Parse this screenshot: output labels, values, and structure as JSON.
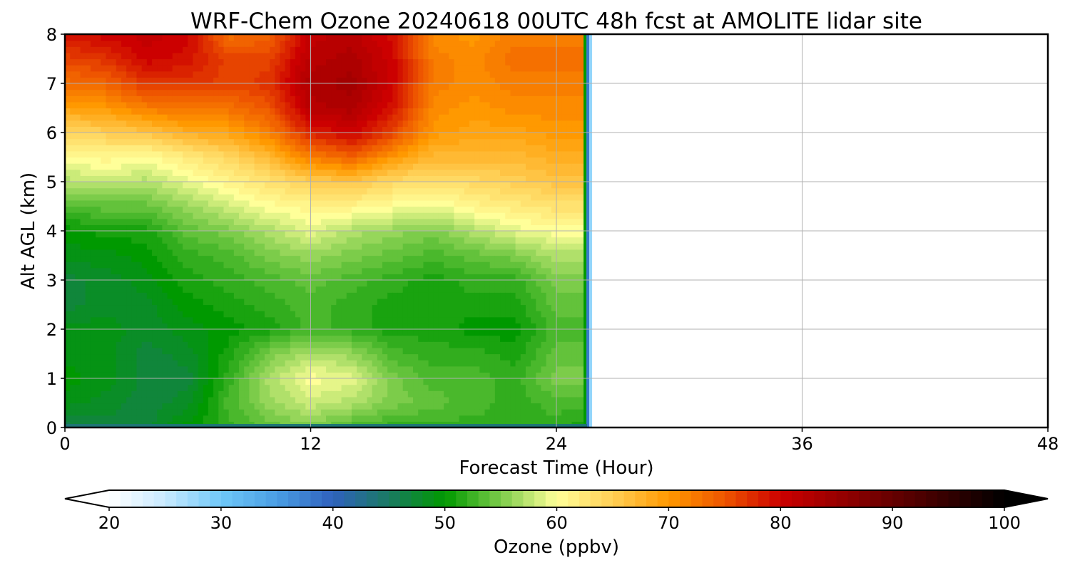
{
  "chart_data": {
    "type": "heatmap",
    "title": "WRF-Chem Ozone  20240618 00UTC 48h fcst at AMOLITE lidar site",
    "xlabel": "Forecast Time (Hour)",
    "ylabel": "Alt AGL (km)",
    "xlim": [
      0,
      48
    ],
    "ylim": [
      0,
      8
    ],
    "x_ticks": [
      0,
      12,
      24,
      36,
      48
    ],
    "y_ticks": [
      0,
      1,
      2,
      3,
      4,
      5,
      6,
      7,
      8
    ],
    "grid": true,
    "data_extent_hours": 25.5,
    "heights_km": [
      0,
      0.5,
      1,
      1.5,
      2,
      2.5,
      3,
      3.5,
      4,
      4.5,
      5,
      5.5,
      6,
      6.5,
      7,
      7.5,
      8
    ],
    "times_hours": [
      0,
      2,
      4,
      6,
      8,
      10,
      12,
      14,
      16,
      18,
      20,
      22,
      24,
      25
    ],
    "ozone_ppbv_by_time": [
      [
        46,
        49,
        50,
        49,
        49,
        47,
        47,
        49,
        50,
        53,
        57,
        60,
        64,
        69,
        73,
        76,
        79
      ],
      [
        47,
        48,
        49,
        49,
        49,
        48,
        48,
        49,
        51,
        54,
        58,
        61,
        65,
        70,
        74,
        77,
        80
      ],
      [
        47,
        47,
        47,
        47,
        48,
        48,
        49,
        50,
        51,
        54,
        57,
        60,
        66,
        72,
        77,
        80,
        81
      ],
      [
        50,
        48,
        47,
        48,
        49,
        50,
        51,
        52,
        54,
        56,
        59,
        62,
        68,
        73,
        77,
        79,
        80
      ],
      [
        52,
        53,
        52,
        51,
        50,
        51,
        52,
        53,
        55,
        58,
        61,
        64,
        69,
        73,
        76,
        76,
        73
      ],
      [
        54,
        56,
        57,
        55,
        51,
        52,
        53,
        55,
        57,
        60,
        63,
        67,
        72,
        75,
        77,
        76,
        74
      ],
      [
        55,
        58,
        60,
        57,
        53,
        53,
        54,
        56,
        59,
        61,
        65,
        72,
        78,
        82,
        83,
        82,
        81
      ],
      [
        53,
        57,
        59,
        56,
        52,
        52,
        53,
        55,
        57,
        61,
        66,
        74,
        80,
        83,
        84,
        83,
        82
      ],
      [
        52,
        55,
        55,
        53,
        51,
        51,
        52,
        54,
        56,
        60,
        64,
        70,
        76,
        79,
        80,
        80,
        79
      ],
      [
        52,
        54,
        53,
        52,
        51,
        51,
        51,
        53,
        55,
        59,
        63,
        67,
        70,
        71,
        72,
        72,
        71
      ],
      [
        52,
        53,
        53,
        52,
        50,
        51,
        52,
        54,
        57,
        61,
        64,
        67,
        69,
        70,
        71,
        71,
        70
      ],
      [
        52,
        52,
        52,
        51,
        50,
        51,
        52,
        55,
        59,
        62,
        65,
        67,
        69,
        71,
        72,
        73,
        72
      ],
      [
        52,
        53,
        55,
        54,
        53,
        54,
        55,
        57,
        60,
        63,
        66,
        68,
        70,
        71,
        72,
        73,
        72
      ],
      [
        51,
        53,
        55,
        54,
        53,
        54,
        55,
        57,
        60,
        63,
        66,
        68,
        70,
        71,
        72,
        73,
        72
      ]
    ],
    "colorbar": {
      "label": "Ozone  (ppbv)",
      "min": 20,
      "max": 100,
      "ticks": [
        20,
        30,
        40,
        50,
        60,
        70,
        80,
        90,
        100
      ],
      "extend": "both",
      "stops": [
        {
          "v": 20,
          "c": "#ffffff"
        },
        {
          "v": 25,
          "c": "#c8eaff"
        },
        {
          "v": 30,
          "c": "#6fc8f8"
        },
        {
          "v": 35,
          "c": "#4a9ee4"
        },
        {
          "v": 40,
          "c": "#2f61bd"
        },
        {
          "v": 45,
          "c": "#1a7a62"
        },
        {
          "v": 50,
          "c": "#009900"
        },
        {
          "v": 55,
          "c": "#7ccc4a"
        },
        {
          "v": 60,
          "c": "#ffff99"
        },
        {
          "v": 65,
          "c": "#ffcf55"
        },
        {
          "v": 70,
          "c": "#ff9900"
        },
        {
          "v": 75,
          "c": "#ee5500"
        },
        {
          "v": 80,
          "c": "#cc0000"
        },
        {
          "v": 90,
          "c": "#660000"
        },
        {
          "v": 100,
          "c": "#000000"
        }
      ]
    }
  }
}
